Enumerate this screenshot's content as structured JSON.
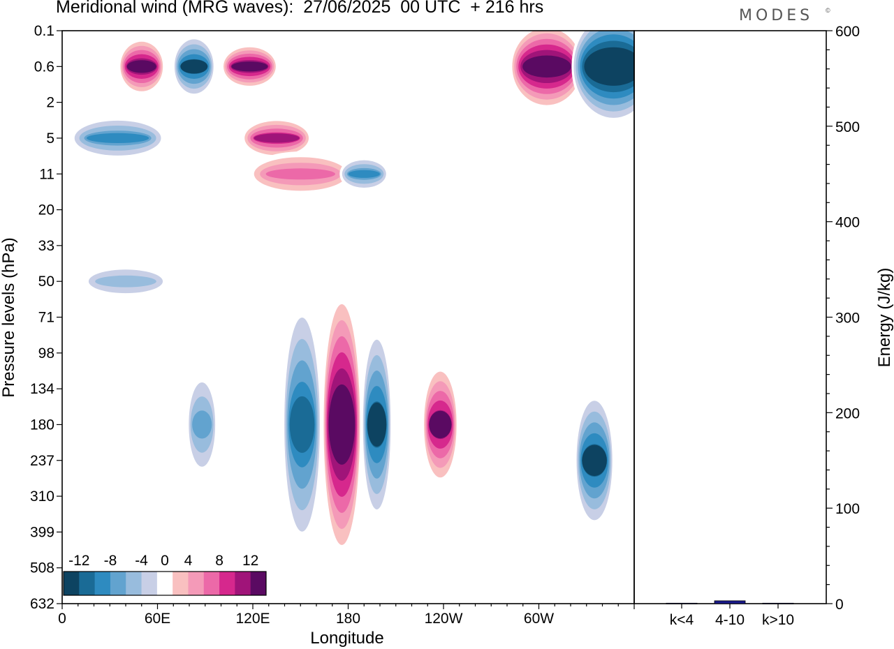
{
  "title": "Meridional wind (MRG waves):  27/06/2025  00 UTC  + 216 hrs",
  "brand": "MODES",
  "brand_mark": "©",
  "chart_data": [
    {
      "type": "heatmap",
      "variable": "Meridional wind (MRG waves)",
      "xlabel": "Longitude",
      "ylabel": "Pressure levels (hPa)",
      "x_ticks": [
        "0",
        "60E",
        "120E",
        "180",
        "120W",
        "60W"
      ],
      "x_tick_values": [
        0,
        60,
        120,
        180,
        240,
        300
      ],
      "xlim": [
        0,
        360
      ],
      "y_ticks": [
        "0.1",
        "0.6",
        "2",
        "5",
        "11",
        "20",
        "33",
        "50",
        "71",
        "98",
        "134",
        "180",
        "237",
        "310",
        "399",
        "508",
        "632"
      ],
      "colorbar": {
        "labels": [
          "-12",
          "-8",
          "-4",
          "0",
          "4",
          "8",
          "12"
        ],
        "levels": [
          -14,
          -12,
          -10,
          -8,
          -6,
          -4,
          -2,
          2,
          4,
          6,
          8,
          10,
          12,
          14
        ],
        "colors": [
          "#0d4361",
          "#1a6b96",
          "#2e8bc0",
          "#62a3cf",
          "#98bcdd",
          "#c8cfe6",
          "#ffffff",
          "#f9c0c0",
          "#f49ab8",
          "#ec69a8",
          "#d6288d",
          "#a01479",
          "#5a0a62"
        ]
      },
      "features": [
        {
          "lon": 176,
          "level": "180",
          "value": 16,
          "note": "strong positive column"
        },
        {
          "lon": 151,
          "level": "180",
          "value": -11
        },
        {
          "lon": 198,
          "level": "180",
          "value": -12
        },
        {
          "lon": 238,
          "level": "180",
          "value": 12
        },
        {
          "lon": 335,
          "level": "237",
          "value": -12
        },
        {
          "lon": 88,
          "level": "180",
          "value": -7
        },
        {
          "lon": 305,
          "level": "0.6",
          "value": 15
        },
        {
          "lon": 347,
          "level": "0.6",
          "value": -17
        },
        {
          "lon": 50,
          "level": "0.6",
          "value": 13
        },
        {
          "lon": 83,
          "level": "0.6",
          "value": -12
        },
        {
          "lon": 118,
          "level": "0.6",
          "value": 13
        },
        {
          "lon": 35,
          "level": "5",
          "value": -8
        },
        {
          "lon": 135,
          "level": "5",
          "value": 10
        },
        {
          "lon": 150,
          "level": "11",
          "value": 7
        },
        {
          "lon": 190,
          "level": "11",
          "value": -8
        },
        {
          "lon": 40,
          "level": "50",
          "value": -5
        }
      ]
    },
    {
      "type": "bar",
      "categories": [
        "k<4",
        "4-10",
        "k>10"
      ],
      "values": [
        0.5,
        3,
        0.5
      ],
      "ylabel": "Energy (J/kg)",
      "ylim": [
        0,
        600
      ],
      "y_ticks": [
        "0",
        "100",
        "200",
        "300",
        "400",
        "500",
        "600"
      ],
      "bar_color": "#1a1a8c"
    }
  ]
}
